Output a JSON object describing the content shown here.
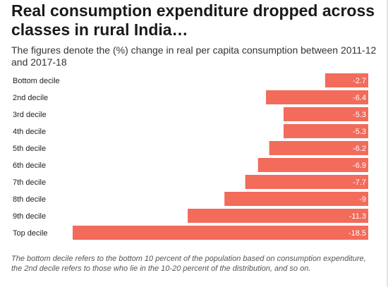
{
  "title": "Real consumption expenditure dropped across classes in rural India…",
  "subtitle": "The figures denote the (%) change in real per capita consumption between 2011-12 and 2017-18",
  "note": "The bottom decile refers to the bottom 10 percent of the population based on consumption expenditure, the 2nd decile refers to those who lie in the 10-20 percent of the distribution, and so on.",
  "colors": {
    "bar": "#f26b5b",
    "value_label": "#ffffff",
    "category_label": "#222222"
  },
  "chart_data": {
    "type": "bar",
    "orientation": "horizontal",
    "categories": [
      "Bottom decile",
      "2nd decile",
      "3rd decile",
      "4th decile",
      "5th decile",
      "6th decile",
      "7th decile",
      "8th decile",
      "9th decile",
      "Top decile"
    ],
    "values": [
      -2.7,
      -6.4,
      -5.3,
      -5.3,
      -6.2,
      -6.9,
      -7.7,
      -9,
      -11.3,
      -18.5
    ],
    "value_labels": [
      "-2.7",
      "-6.4",
      "-5.3",
      "-5.3",
      "-6.2",
      "-6.9",
      "-7.7",
      "-9",
      "-11.3",
      "-18.5"
    ],
    "xlim": [
      -18.5,
      0
    ],
    "grid": false,
    "legend": "none"
  }
}
